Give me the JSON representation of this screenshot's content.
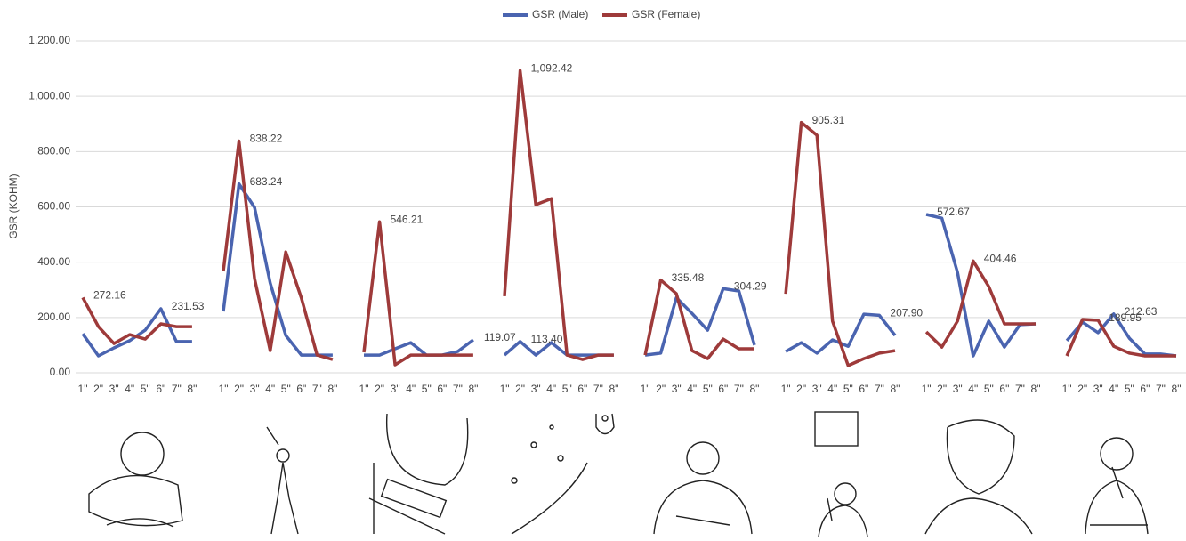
{
  "chart_data": {
    "type": "line",
    "y_label": "GSR (KOHM)",
    "categories": [
      "1\"",
      "2\"",
      "3\"",
      "4\"",
      "5\"",
      "6\"",
      "7\"",
      "8\"",
      null,
      "1\"",
      "2\"",
      "3\"",
      "4\"",
      "5\"",
      "6\"",
      "7\"",
      "8\"",
      null,
      "1\"",
      "2\"",
      "3\"",
      "4\"",
      "5\"",
      "6\"",
      "7\"",
      "8\"",
      null,
      "1\"",
      "2\"",
      "3\"",
      "4\"",
      "5\"",
      "6\"",
      "7\"",
      "8\"",
      null,
      "1\"",
      "2\"",
      "3\"",
      "4\"",
      "5\"",
      "6\"",
      "7\"",
      "8\"",
      null,
      "1\"",
      "2\"",
      "3\"",
      "4\"",
      "5\"",
      "6\"",
      "7\"",
      "8\"",
      null,
      "1\"",
      "2\"",
      "3\"",
      "4\"",
      "5\"",
      "6\"",
      "7\"",
      "8\"",
      null,
      "1\"",
      "2\"",
      "3\"",
      "4\"",
      "5\"",
      "6\"",
      "7\"",
      "8\""
    ],
    "series": [
      {
        "name": "GSR (Male)",
        "color": "#4a64b0",
        "values": [
          141,
          61,
          90,
          116,
          154,
          231.53,
          113,
          113,
          null,
          222,
          683.24,
          598,
          325,
          135,
          64,
          64,
          64,
          null,
          64,
          64,
          87,
          109,
          64,
          64,
          77,
          119.07,
          null,
          64,
          113.4,
          64,
          109,
          64,
          64,
          64,
          64,
          null,
          64,
          71,
          272,
          215,
          154,
          304.29,
          296,
          100,
          null,
          77,
          109,
          71,
          119,
          96,
          212,
          207.9,
          135,
          null,
          572.67,
          559,
          363,
          61,
          187,
          93,
          174,
          177,
          null,
          116,
          183,
          145,
          212.63,
          125,
          68,
          68,
          61
        ],
        "value_labels": [
          null,
          null,
          null,
          null,
          null,
          "231.53",
          null,
          null,
          null,
          null,
          "683.24",
          null,
          null,
          null,
          null,
          null,
          null,
          null,
          null,
          null,
          null,
          null,
          null,
          null,
          null,
          "119.07",
          null,
          null,
          "113.40",
          null,
          null,
          null,
          null,
          null,
          null,
          null,
          null,
          null,
          null,
          null,
          null,
          "304.29",
          null,
          null,
          null,
          null,
          null,
          null,
          null,
          null,
          null,
          "207.90",
          null,
          null,
          "572.67",
          null,
          null,
          null,
          null,
          null,
          null,
          null,
          null,
          null,
          null,
          null,
          "212.63",
          null,
          null,
          null,
          null
        ]
      },
      {
        "name": "GSR (Female)",
        "color": "#9e3a3a",
        "values": [
          272.16,
          167,
          106,
          138,
          122,
          177,
          167,
          167,
          null,
          367,
          838.22,
          341,
          80,
          437,
          270,
          64,
          48,
          null,
          74,
          546.21,
          29,
          64,
          64,
          64,
          64,
          64,
          null,
          277,
          1092.42,
          608,
          630,
          64,
          48,
          64,
          64,
          null,
          64,
          335.48,
          286,
          80,
          51,
          122,
          87,
          87,
          null,
          286,
          905.31,
          859,
          187,
          26,
          51,
          71,
          80,
          null,
          148,
          93,
          187,
          404.46,
          312,
          177,
          177,
          177,
          null,
          61,
          193,
          189.95,
          96,
          71,
          61,
          61,
          61
        ],
        "value_labels": [
          "272.16",
          null,
          null,
          null,
          null,
          null,
          null,
          null,
          null,
          null,
          "838.22",
          null,
          null,
          null,
          null,
          null,
          null,
          null,
          null,
          "546.21",
          null,
          null,
          null,
          null,
          null,
          null,
          null,
          null,
          "1,092.42",
          null,
          null,
          null,
          null,
          null,
          null,
          null,
          null,
          "335.48",
          null,
          null,
          null,
          null,
          null,
          null,
          null,
          null,
          "905.31",
          null,
          null,
          null,
          null,
          null,
          null,
          null,
          null,
          null,
          null,
          "404.46",
          null,
          null,
          null,
          null,
          null,
          null,
          null,
          "189.95",
          null,
          null,
          null,
          null,
          null
        ]
      }
    ],
    "ylim": [
      0,
      1200
    ],
    "yticks": [
      {
        "value": 0,
        "label": "0.00"
      },
      {
        "value": 200,
        "label": "200.00"
      },
      {
        "value": 400,
        "label": "400.00"
      },
      {
        "value": 600,
        "label": "600.00"
      },
      {
        "value": 800,
        "label": "800.00"
      },
      {
        "value": 1000,
        "label": "1,000.00"
      },
      {
        "value": 1200,
        "label": "1,200.00"
      }
    ],
    "grid": true,
    "legend": "top"
  }
}
